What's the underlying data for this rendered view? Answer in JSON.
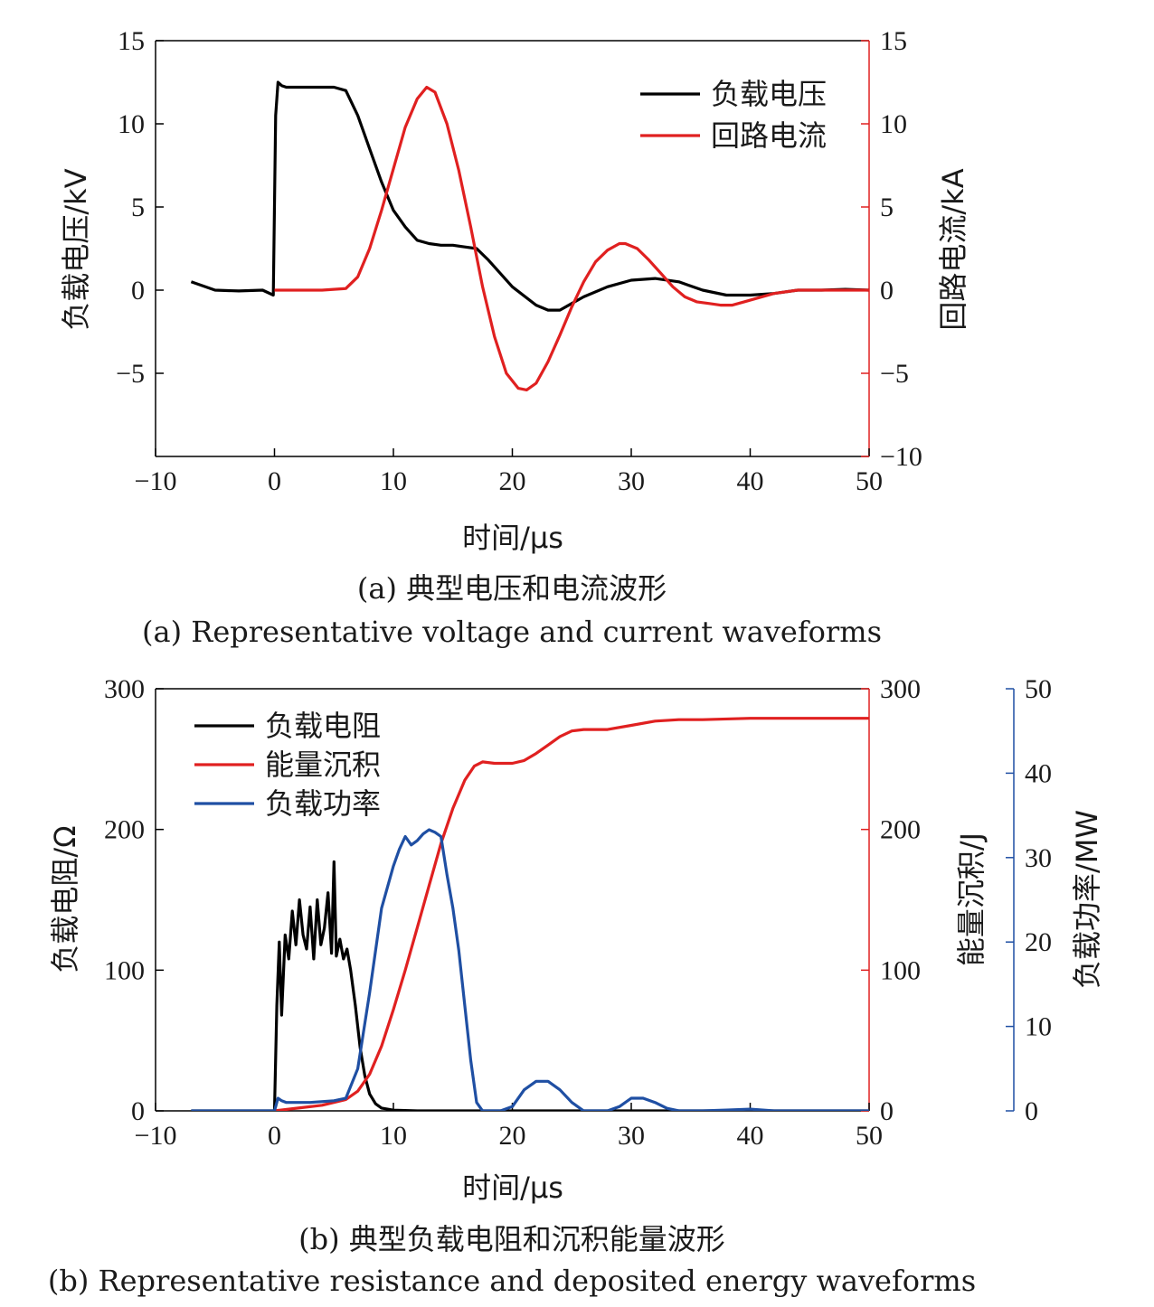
{
  "chart_data": [
    {
      "type": "line",
      "caption_cn": "(a) 典型电压和电流波形",
      "caption_en": "(a) Representative voltage and current waveforms",
      "xlabel": "时间/μs",
      "ylabel_left": "负载电压/kV",
      "ylabel_right": "回路电流/kA",
      "xlim": [
        -10,
        50
      ],
      "ylim_left": [
        -10,
        15
      ],
      "ylim_right": [
        -10,
        15
      ],
      "xticks": [
        -10,
        0,
        10,
        20,
        30,
        40,
        50
      ],
      "yticks_left": [
        -5,
        0,
        5,
        10,
        15
      ],
      "yticks_right": [
        -10,
        -5,
        0,
        5,
        10,
        15
      ],
      "legend_position": "top-right",
      "series": [
        {
          "name": "负载电压",
          "color": "#000000",
          "axis": "left",
          "x": [
            -7,
            -5,
            -3,
            -1,
            -0.1,
            0.1,
            0.3,
            0.6,
            1,
            3,
            5,
            6,
            7,
            8,
            9,
            10,
            11,
            12,
            13,
            14,
            15,
            16,
            17,
            18,
            20,
            22,
            23,
            24,
            25,
            26,
            28,
            30,
            32,
            34,
            36,
            38,
            40,
            42,
            44,
            46,
            48,
            50
          ],
          "y": [
            0.5,
            0.0,
            -0.05,
            0.0,
            -0.3,
            10.5,
            12.5,
            12.3,
            12.2,
            12.2,
            12.2,
            12.0,
            10.5,
            8.5,
            6.5,
            4.8,
            3.8,
            3.0,
            2.8,
            2.7,
            2.7,
            2.6,
            2.5,
            1.8,
            0.2,
            -0.9,
            -1.2,
            -1.2,
            -0.8,
            -0.4,
            0.2,
            0.6,
            0.7,
            0.5,
            0.0,
            -0.3,
            -0.3,
            -0.2,
            0.0,
            0.0,
            0.05,
            0.0
          ]
        },
        {
          "name": "回路电流",
          "color": "#e02020",
          "axis": "right",
          "x": [
            0,
            2,
            4,
            6,
            7,
            8,
            9,
            10,
            11,
            12,
            12.8,
            13.5,
            14.5,
            15.5,
            16.5,
            17.5,
            18.5,
            19.5,
            20.5,
            21.2,
            22,
            23,
            24,
            25,
            26,
            27,
            28,
            29,
            29.5,
            30.5,
            31.5,
            32.5,
            33.5,
            34.5,
            35.5,
            36.5,
            37.5,
            38.5,
            39.5,
            40.5,
            42,
            44,
            46,
            48,
            50
          ],
          "y": [
            0.0,
            0.0,
            0.0,
            0.1,
            0.8,
            2.5,
            4.8,
            7.3,
            9.8,
            11.5,
            12.2,
            11.9,
            10.0,
            7.2,
            3.8,
            0.2,
            -2.8,
            -5.0,
            -5.9,
            -6.0,
            -5.6,
            -4.3,
            -2.7,
            -1.0,
            0.5,
            1.7,
            2.4,
            2.8,
            2.8,
            2.5,
            1.8,
            1.0,
            0.2,
            -0.4,
            -0.7,
            -0.8,
            -0.9,
            -0.9,
            -0.7,
            -0.5,
            -0.2,
            0.0,
            0.0,
            0.0,
            0.0
          ]
        }
      ]
    },
    {
      "type": "line",
      "caption_cn": "(b) 典型负载电阻和沉积能量波形",
      "caption_en": "(b) Representative resistance and deposited energy waveforms",
      "xlabel": "时间/μs",
      "ylabel_left": "负载电阻/Ω",
      "ylabel_right": "能量沉积/J",
      "ylabel_right2": "负载功率/MW",
      "xlim": [
        -10,
        50
      ],
      "ylim_left": [
        0,
        300
      ],
      "ylim_right": [
        0,
        300
      ],
      "ylim_right2": [
        0,
        50
      ],
      "xticks": [
        -10,
        0,
        10,
        20,
        30,
        40,
        50
      ],
      "yticks_left": [
        0,
        100,
        200,
        300
      ],
      "yticks_right": [
        0,
        100,
        200,
        300
      ],
      "yticks_right2": [
        0,
        10,
        20,
        30,
        40,
        50
      ],
      "legend_position": "top-left",
      "series": [
        {
          "name": "负载电阻",
          "color": "#000000",
          "axis": "left",
          "x": [
            -7,
            -2,
            0,
            0.2,
            0.4,
            0.6,
            0.9,
            1.2,
            1.5,
            1.8,
            2.1,
            2.4,
            2.7,
            3.0,
            3.3,
            3.6,
            3.9,
            4.2,
            4.5,
            4.8,
            5.0,
            5.2,
            5.5,
            5.8,
            6.1,
            6.4,
            6.8,
            7.2,
            7.6,
            8.0,
            8.5,
            9,
            10,
            12,
            20,
            50
          ],
          "y": [
            0,
            0,
            0,
            75,
            120,
            68,
            125,
            108,
            142,
            118,
            150,
            125,
            115,
            145,
            108,
            150,
            118,
            130,
            155,
            112,
            177,
            110,
            122,
            108,
            115,
            100,
            75,
            45,
            25,
            12,
            5,
            2,
            0.5,
            0,
            0,
            0
          ]
        },
        {
          "name": "能量沉积",
          "color": "#e02020",
          "axis": "right",
          "x": [
            0,
            2,
            4,
            6,
            7,
            8,
            9,
            10,
            11,
            12,
            13,
            14,
            15,
            16,
            16.8,
            17.5,
            18.5,
            20,
            21,
            22,
            23,
            24,
            25,
            26,
            28,
            30,
            32,
            34,
            36,
            40,
            44,
            50
          ],
          "y": [
            0,
            2,
            4,
            8,
            14,
            26,
            46,
            72,
            100,
            130,
            160,
            190,
            215,
            235,
            245,
            248,
            247,
            247,
            249,
            254,
            260,
            266,
            270,
            271,
            271,
            274,
            277,
            278,
            278,
            279,
            279,
            279
          ]
        },
        {
          "name": "负载功率",
          "color": "#1f4fa3",
          "axis": "right2",
          "x": [
            -7,
            0,
            0.3,
            0.6,
            1,
            3,
            5,
            6,
            7,
            8,
            9,
            10,
            10.5,
            11,
            11.5,
            12,
            12.5,
            13,
            13.5,
            14,
            14.5,
            15,
            15.5,
            16,
            16.5,
            17,
            17.5,
            18,
            19,
            20,
            21,
            22,
            23,
            24,
            25,
            26,
            27,
            28,
            29,
            30,
            31,
            32,
            33,
            34,
            36,
            38,
            40,
            42,
            44,
            50
          ],
          "y": [
            0,
            0,
            1.5,
            1.2,
            1.0,
            1.0,
            1.2,
            1.5,
            5.0,
            14.0,
            24.0,
            29.0,
            31.0,
            32.5,
            31.5,
            32.0,
            32.8,
            33.3,
            33.0,
            32.5,
            28.0,
            24.0,
            19.0,
            12.5,
            6.0,
            1.0,
            0,
            0,
            0,
            0.5,
            2.5,
            3.5,
            3.5,
            2.5,
            1.0,
            0,
            0,
            0,
            0.5,
            1.5,
            1.5,
            1.0,
            0.3,
            0,
            0,
            0.1,
            0.2,
            0,
            0,
            0
          ]
        }
      ]
    }
  ]
}
